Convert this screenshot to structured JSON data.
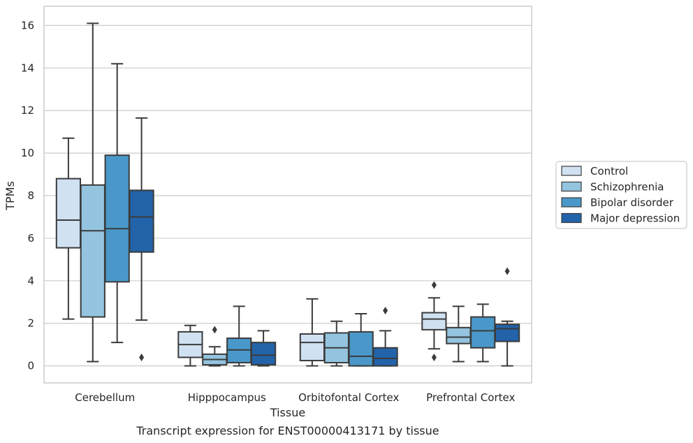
{
  "caption": "Transcript expression for ENST00000413171 by tissue",
  "chart_data": {
    "type": "boxplot",
    "title": "",
    "xlabel": "Tissue",
    "ylabel": "TPMs",
    "ylim": [
      -0.8,
      16.9
    ],
    "yticks": [
      0,
      2,
      4,
      6,
      8,
      10,
      12,
      14,
      16
    ],
    "grid": "horizontal",
    "legend_position": "right",
    "categories": [
      "Cerebellum",
      "Hipppocampus",
      "Orbitofontal Cortex",
      "Prefrontal Cortex"
    ],
    "series": [
      {
        "name": "Control",
        "color": "#d0e1f2",
        "boxes": [
          {
            "whislo": 2.2,
            "q1": 5.55,
            "med": 6.85,
            "q3": 8.8,
            "whishi": 10.7,
            "fliers": []
          },
          {
            "whislo": 0.0,
            "q1": 0.4,
            "med": 1.0,
            "q3": 1.6,
            "whishi": 1.9,
            "fliers": []
          },
          {
            "whislo": 0.0,
            "q1": 0.25,
            "med": 1.1,
            "q3": 1.5,
            "whishi": 3.15,
            "fliers": []
          },
          {
            "whislo": 0.8,
            "q1": 1.7,
            "med": 2.2,
            "q3": 2.5,
            "whishi": 3.2,
            "fliers": [
              0.4,
              3.8
            ]
          }
        ]
      },
      {
        "name": "Schizophrenia",
        "color": "#94c4df",
        "boxes": [
          {
            "whislo": 0.2,
            "q1": 2.3,
            "med": 6.35,
            "q3": 8.5,
            "whishi": 16.1,
            "fliers": []
          },
          {
            "whislo": 0.0,
            "q1": 0.05,
            "med": 0.3,
            "q3": 0.55,
            "whishi": 0.9,
            "fliers": [
              1.7
            ]
          },
          {
            "whislo": 0.0,
            "q1": 0.15,
            "med": 0.85,
            "q3": 1.55,
            "whishi": 2.1,
            "fliers": []
          },
          {
            "whislo": 0.2,
            "q1": 1.05,
            "med": 1.35,
            "q3": 1.8,
            "whishi": 2.8,
            "fliers": []
          }
        ]
      },
      {
        "name": "Bipolar disorder",
        "color": "#4a98c9",
        "boxes": [
          {
            "whislo": 1.1,
            "q1": 3.95,
            "med": 6.45,
            "q3": 9.9,
            "whishi": 14.2,
            "fliers": []
          },
          {
            "whislo": 0.0,
            "q1": 0.15,
            "med": 0.75,
            "q3": 1.3,
            "whishi": 2.8,
            "fliers": []
          },
          {
            "whislo": 0.0,
            "q1": 0.0,
            "med": 0.45,
            "q3": 1.6,
            "whishi": 2.45,
            "fliers": []
          },
          {
            "whislo": 0.2,
            "q1": 0.85,
            "med": 1.65,
            "q3": 2.3,
            "whishi": 2.9,
            "fliers": []
          }
        ]
      },
      {
        "name": "Major depression",
        "color": "#2363a9",
        "boxes": [
          {
            "whislo": 2.15,
            "q1": 5.35,
            "med": 7.0,
            "q3": 8.25,
            "whishi": 11.65,
            "fliers": [
              0.4
            ]
          },
          {
            "whislo": 0.0,
            "q1": 0.05,
            "med": 0.5,
            "q3": 1.1,
            "whishi": 1.65,
            "fliers": []
          },
          {
            "whislo": 0.0,
            "q1": 0.0,
            "med": 0.35,
            "q3": 0.85,
            "whishi": 1.65,
            "fliers": [
              2.6
            ]
          },
          {
            "whislo": 0.0,
            "q1": 1.15,
            "med": 1.75,
            "q3": 1.95,
            "whishi": 2.1,
            "fliers": [
              4.45
            ]
          }
        ]
      }
    ]
  }
}
